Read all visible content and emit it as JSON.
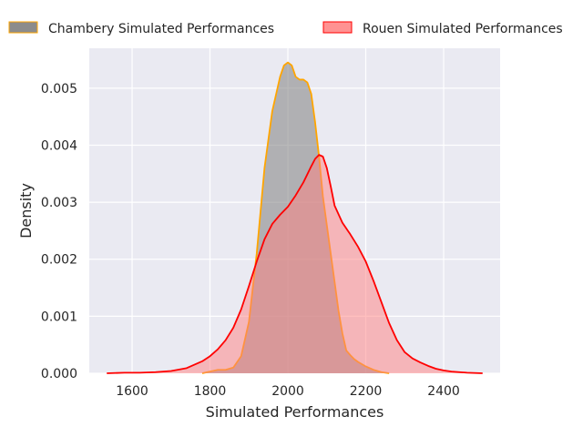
{
  "chart_data": {
    "type": "area",
    "title": "",
    "xlabel": "Simulated Performances",
    "ylabel": "Density",
    "xlim": [
      1490,
      2545
    ],
    "ylim": [
      0,
      0.0057
    ],
    "xticks": [
      1600,
      1800,
      2000,
      2200,
      2400
    ],
    "yticks": [
      0.0,
      0.001,
      0.002,
      0.003,
      0.004,
      0.005
    ],
    "ytick_labels": [
      "0.000",
      "0.001",
      "0.002",
      "0.003",
      "0.004",
      "0.005"
    ],
    "grid": true,
    "legend_position": "top, above plot",
    "series": [
      {
        "name": "Chambery Simulated Performances",
        "fill_color": "#808080",
        "fill_opacity": 0.55,
        "line_color": "#ffa500",
        "x": [
          1780,
          1800,
          1820,
          1840,
          1860,
          1880,
          1900,
          1920,
          1940,
          1960,
          1980,
          1990,
          2000,
          2010,
          2020,
          2030,
          2040,
          2050,
          2060,
          2070,
          2080,
          2090,
          2100,
          2110,
          2120,
          2130,
          2140,
          2150,
          2160,
          2170,
          2180,
          2200,
          2220,
          2240,
          2260
        ],
        "y": [
          0.0,
          3e-05,
          6e-05,
          6e-05,
          0.0001,
          0.0003,
          0.0009,
          0.0021,
          0.0036,
          0.0046,
          0.0052,
          0.0054,
          0.00545,
          0.0054,
          0.0052,
          0.00515,
          0.00515,
          0.0051,
          0.0049,
          0.0044,
          0.0038,
          0.0031,
          0.0026,
          0.0021,
          0.0016,
          0.0011,
          0.0007,
          0.0004,
          0.00032,
          0.00025,
          0.0002,
          0.00012,
          6e-05,
          2e-05,
          0.0
        ]
      },
      {
        "name": "Rouen Simulated Performances",
        "fill_color": "#ff7f7f",
        "fill_opacity": 0.5,
        "line_color": "#ff0000",
        "x": [
          1535,
          1580,
          1620,
          1660,
          1700,
          1740,
          1780,
          1800,
          1820,
          1840,
          1860,
          1880,
          1900,
          1920,
          1940,
          1960,
          1980,
          2000,
          2020,
          2040,
          2060,
          2070,
          2080,
          2090,
          2100,
          2110,
          2120,
          2140,
          2160,
          2180,
          2200,
          2220,
          2240,
          2260,
          2280,
          2300,
          2320,
          2340,
          2360,
          2380,
          2400,
          2420,
          2440,
          2460,
          2500
        ],
        "y": [
          0.0,
          1e-05,
          1e-05,
          2e-05,
          4e-05,
          9e-05,
          0.00021,
          0.0003,
          0.00042,
          0.00058,
          0.0008,
          0.00112,
          0.00153,
          0.00196,
          0.00235,
          0.00262,
          0.00278,
          0.00292,
          0.00312,
          0.00335,
          0.00363,
          0.00376,
          0.00383,
          0.0038,
          0.0036,
          0.00328,
          0.00294,
          0.00264,
          0.00244,
          0.00222,
          0.00196,
          0.00162,
          0.00125,
          0.00088,
          0.00058,
          0.00037,
          0.00026,
          0.00019,
          0.00013,
          8e-05,
          5e-05,
          3e-05,
          2e-05,
          1e-05,
          0.0
        ]
      }
    ]
  }
}
